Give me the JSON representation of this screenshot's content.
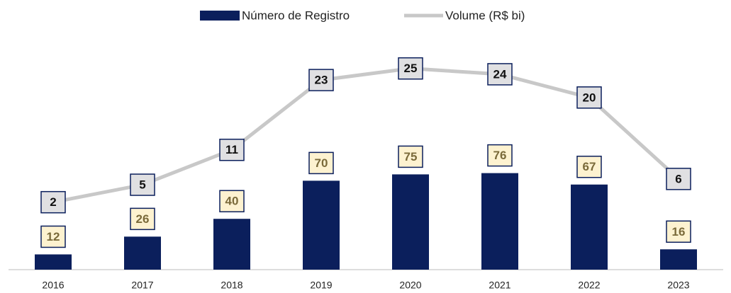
{
  "chart_data": {
    "type": "bar_line",
    "categories": [
      "2016",
      "2017",
      "2018",
      "2019",
      "2020",
      "2021",
      "2022",
      "2023"
    ],
    "series": [
      {
        "name": "Número de Registro",
        "color": "#0b1f5c",
        "values": [
          12,
          26,
          40,
          70,
          75,
          76,
          67,
          16
        ]
      },
      {
        "name": "Volume (R$ bi)",
        "color": "#c8c8c8",
        "axis": "y2",
        "values": [
          2,
          5,
          11,
          23,
          25,
          24,
          20,
          6
        ]
      }
    ],
    "ylim": [
      0,
      190
    ],
    "y2lim": [
      -9.6,
      31.9
    ],
    "legend": "top"
  }
}
